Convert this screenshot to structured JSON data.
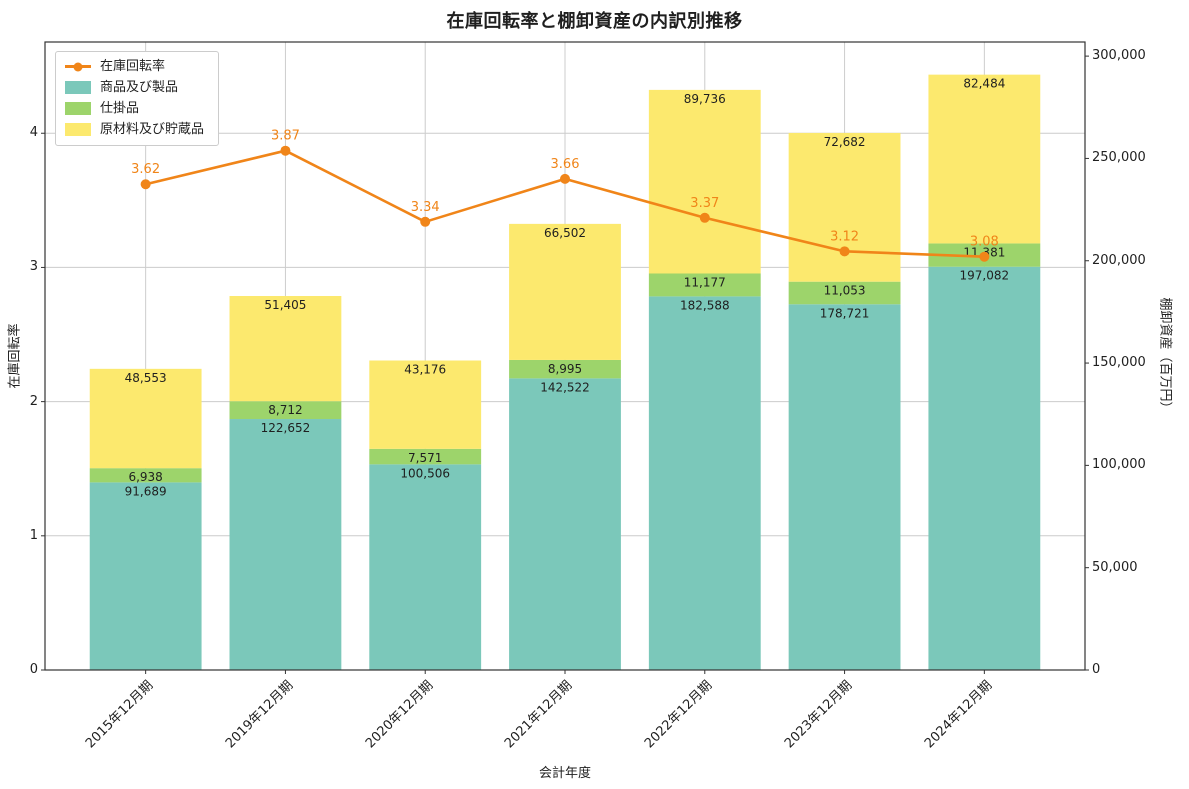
{
  "chart_data": {
    "type": "bar",
    "subtype": "stacked-bar-with-line",
    "title": "在庫回転率と棚卸資産の内訳別推移",
    "xlabel": "会計年度",
    "ylabel_left": "在庫回転率",
    "ylabel_right": "棚卸資産（百万円）",
    "categories": [
      "2015年12月期",
      "2019年12月期",
      "2020年12月期",
      "2021年12月期",
      "2022年12月期",
      "2023年12月期",
      "2024年12月期"
    ],
    "bar_series": [
      {
        "name": "商品及び製品",
        "color": "#7bc8ba",
        "axis": "right",
        "values": [
          91689,
          122652,
          100506,
          142522,
          182588,
          178721,
          197082
        ]
      },
      {
        "name": "仕掛品",
        "color": "#9dd46b",
        "axis": "right",
        "values": [
          6938,
          8712,
          7571,
          8995,
          11177,
          11053,
          11381
        ]
      },
      {
        "name": "原材料及び貯蔵品",
        "color": "#fce96e",
        "axis": "right",
        "values": [
          48553,
          51405,
          43176,
          66502,
          89736,
          72682,
          82484
        ]
      }
    ],
    "line_series": {
      "name": "在庫回転率",
      "color": "#f08519",
      "axis": "left",
      "values": [
        3.62,
        3.87,
        3.34,
        3.66,
        3.37,
        3.12,
        3.08
      ]
    },
    "left_axis": {
      "min": 0,
      "max": 4.68,
      "ticks": [
        0,
        1,
        2,
        3,
        4
      ]
    },
    "right_axis": {
      "min": 0,
      "max": 306900,
      "ticks": [
        0,
        50000,
        100000,
        150000,
        200000,
        250000,
        300000
      ]
    },
    "legend": [
      "在庫回転率",
      "商品及び製品",
      "仕掛品",
      "原材料及び貯蔵品"
    ],
    "grid": true,
    "colors": {
      "grid": "#cccccc",
      "spine": "#333333",
      "text": "#1f1f1f",
      "background": "#ffffff"
    }
  }
}
